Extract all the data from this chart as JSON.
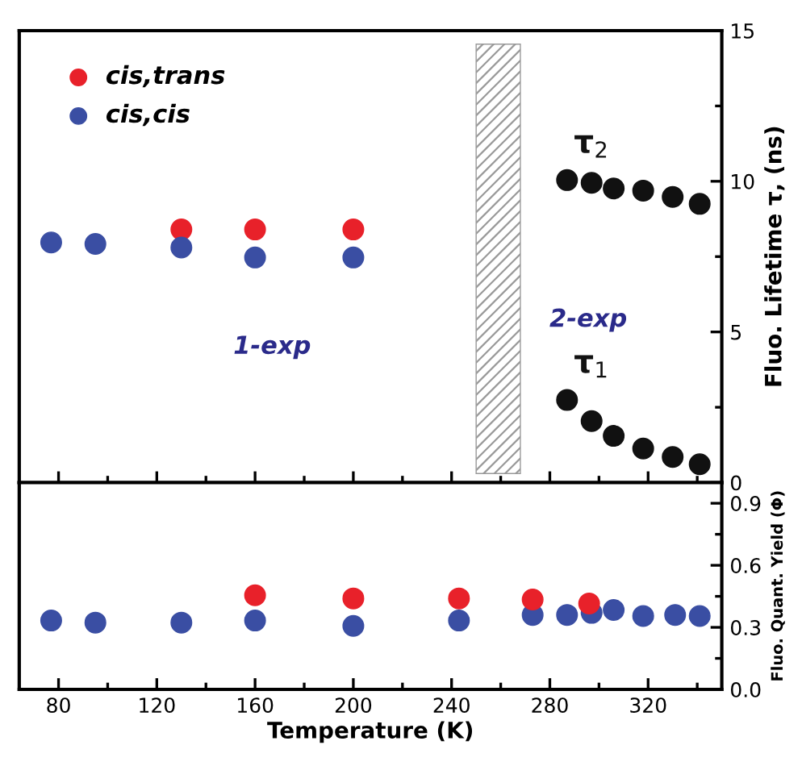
{
  "chart_data": [
    {
      "type": "scatter",
      "marker": "circle",
      "xlim": [
        64,
        350
      ],
      "xticks": [
        80,
        120,
        160,
        200,
        240,
        280,
        320
      ],
      "ylim": [
        0,
        15
      ],
      "yticks": [
        0,
        5,
        10,
        15
      ],
      "ylabel": "Fluo. Lifetime τ, (ns)",
      "tick_labels": "y",
      "legend": "top left",
      "grid": false,
      "series": [
        {
          "name": "cis,trans",
          "color": "#e8212a",
          "x": [
            130,
            160,
            200
          ],
          "values": [
            8.4,
            8.4,
            8.4
          ]
        },
        {
          "name": "cis,cis",
          "color": "#3a4ea3",
          "x": [
            77,
            95,
            130,
            160,
            200
          ],
          "values": [
            7.97,
            7.92,
            7.8,
            7.47,
            7.47
          ]
        },
        {
          "name": "τ$_{2}$",
          "color": "#111111",
          "x": [
            287,
            297,
            306,
            318,
            330,
            341
          ],
          "values": [
            10.04,
            9.95,
            9.76,
            9.69,
            9.48,
            9.25
          ]
        },
        {
          "name": "τ$_{1}$",
          "color": "#111111",
          "x": [
            287,
            297,
            306,
            318,
            330,
            341
          ],
          "values": [
            2.74,
            2.04,
            1.55,
            1.13,
            0.85,
            0.61
          ]
        }
      ],
      "bands": [
        {
          "axis": "x",
          "from": 250,
          "to": 268,
          "color": "#999999"
        }
      ],
      "annotations": [
        "1-exp",
        "2-exp"
      ]
    },
    {
      "type": "scatter",
      "marker": "circle",
      "xlim": [
        64,
        350
      ],
      "xticks": [
        80,
        120,
        160,
        200,
        240,
        280,
        320
      ],
      "ylim": [
        0,
        1.0
      ],
      "yticks": [
        {
          "value": 0,
          "label": "0.0"
        },
        0.3,
        0.6,
        0.9
      ],
      "xlabel": "Temperature (K)",
      "ylabel": "Fluo. Quant. Yield (Φ)",
      "grid": false,
      "series": [
        {
          "color": "#3a4ea3",
          "x": [
            77,
            95,
            130,
            160,
            200,
            243,
            273,
            287,
            297,
            306,
            318,
            331,
            341
          ],
          "values": [
            0.333,
            0.323,
            0.323,
            0.333,
            0.307,
            0.333,
            0.36,
            0.36,
            0.37,
            0.384,
            0.355,
            0.36,
            0.355
          ]
        },
        {
          "color": "#e8212a",
          "x": [
            160,
            200,
            243,
            273,
            296
          ],
          "values": [
            0.455,
            0.44,
            0.44,
            0.435,
            0.415
          ]
        }
      ]
    }
  ]
}
